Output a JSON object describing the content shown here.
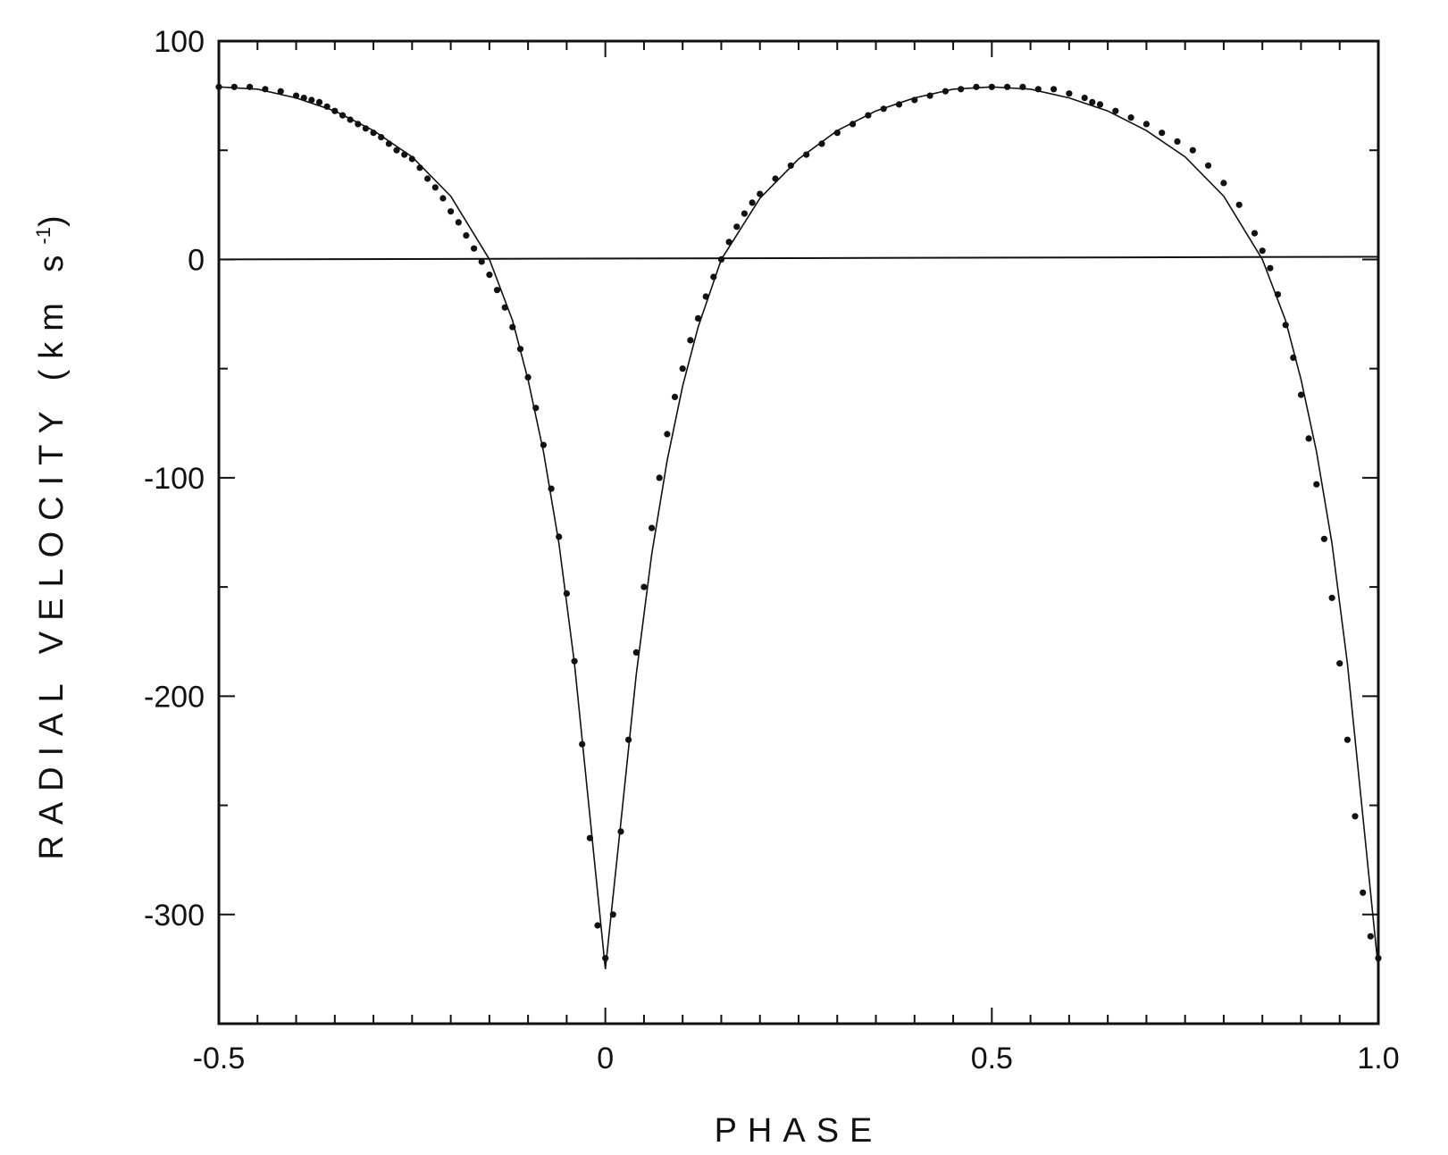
{
  "chart_data": {
    "type": "scatter",
    "xlabel": "PHASE",
    "ylabel": "RADIAL VELOCITY (km s",
    "ylabel_superscript": "-1",
    "ylabel_close": ")",
    "xlim": [
      -0.5,
      1.0
    ],
    "ylim": [
      -350,
      100
    ],
    "x_ticks": [
      -0.5,
      0,
      0.5,
      1.0
    ],
    "x_tick_labels": [
      "-0.5",
      "0",
      "0.5",
      "1.0"
    ],
    "y_ticks": [
      100,
      0,
      -100,
      -200,
      -300
    ],
    "y_tick_labels": [
      "100",
      "0",
      "-100",
      "-200",
      "-300"
    ],
    "grid": false,
    "zero_line": 0,
    "fit_curve": {
      "x": [
        -0.5,
        -0.45,
        -0.4,
        -0.35,
        -0.3,
        -0.25,
        -0.2,
        -0.15,
        -0.12,
        -0.1,
        -0.08,
        -0.06,
        -0.04,
        -0.02,
        0.0,
        0.02,
        0.04,
        0.06,
        0.08,
        0.1,
        0.12,
        0.15,
        0.2,
        0.25,
        0.3,
        0.35,
        0.4,
        0.45,
        0.5,
        0.55,
        0.6,
        0.65,
        0.7,
        0.75,
        0.8,
        0.85,
        0.88,
        0.9,
        0.92,
        0.94,
        0.96,
        0.98,
        1.0
      ],
      "y": [
        79,
        78,
        74,
        68,
        59,
        47,
        29,
        0,
        -28,
        -55,
        -88,
        -130,
        -185,
        -255,
        -325,
        -258,
        -190,
        -135,
        -92,
        -58,
        -31,
        0,
        28,
        46,
        59,
        68,
        74,
        78,
        79,
        78,
        74,
        68,
        59,
        47,
        29,
        0,
        -28,
        -55,
        -88,
        -130,
        -185,
        -255,
        -325
      ]
    },
    "points": {
      "x": [
        -0.5,
        -0.48,
        -0.46,
        -0.44,
        -0.42,
        -0.4,
        -0.39,
        -0.38,
        -0.37,
        -0.36,
        -0.35,
        -0.34,
        -0.33,
        -0.32,
        -0.31,
        -0.3,
        -0.29,
        -0.28,
        -0.27,
        -0.26,
        -0.25,
        -0.24,
        -0.23,
        -0.22,
        -0.21,
        -0.2,
        -0.19,
        -0.18,
        -0.17,
        -0.16,
        -0.15,
        -0.14,
        -0.13,
        -0.12,
        -0.11,
        -0.1,
        -0.09,
        -0.08,
        -0.07,
        -0.06,
        -0.05,
        -0.04,
        -0.03,
        -0.02,
        -0.01,
        0.0,
        0.01,
        0.02,
        0.03,
        0.04,
        0.05,
        0.06,
        0.07,
        0.08,
        0.09,
        0.1,
        0.11,
        0.12,
        0.13,
        0.14,
        0.15,
        0.16,
        0.17,
        0.18,
        0.19,
        0.2,
        0.22,
        0.24,
        0.26,
        0.28,
        0.3,
        0.32,
        0.34,
        0.36,
        0.38,
        0.4,
        0.42,
        0.44,
        0.46,
        0.48,
        0.5,
        0.52,
        0.54,
        0.56,
        0.58,
        0.6,
        0.62,
        0.63,
        0.64,
        0.66,
        0.68,
        0.7,
        0.72,
        0.74,
        0.76,
        0.78,
        0.8,
        0.82,
        0.84,
        0.85,
        0.86,
        0.87,
        0.88,
        0.89,
        0.9,
        0.91,
        0.92,
        0.93,
        0.94,
        0.95,
        0.96,
        0.97,
        0.98,
        0.99,
        1.0
      ],
      "y": [
        79,
        79,
        79,
        78,
        77,
        75,
        74,
        73,
        72,
        70,
        68,
        66,
        64,
        62,
        60,
        58,
        56,
        53,
        50,
        48,
        46,
        42,
        37,
        33,
        28,
        22,
        17,
        11,
        5,
        -1,
        -7,
        -14,
        -22,
        -31,
        -41,
        -54,
        -68,
        -85,
        -105,
        -127,
        -153,
        -184,
        -222,
        -265,
        -305,
        -320,
        -300,
        -262,
        -220,
        -180,
        -150,
        -123,
        -100,
        -80,
        -63,
        -50,
        -37,
        -27,
        -17,
        -8,
        0,
        8,
        15,
        21,
        26,
        30,
        37,
        43,
        48,
        53,
        58,
        62,
        66,
        69,
        71,
        73,
        75,
        77,
        78,
        79,
        79,
        79,
        79,
        78,
        78,
        76,
        74,
        72,
        71,
        68,
        65,
        62,
        58,
        54,
        50,
        43,
        35,
        25,
        12,
        4,
        -4,
        -16,
        -30,
        -45,
        -62,
        -82,
        -103,
        -128,
        -155,
        -185,
        -220,
        -255,
        -290,
        -310,
        -320
      ]
    }
  }
}
